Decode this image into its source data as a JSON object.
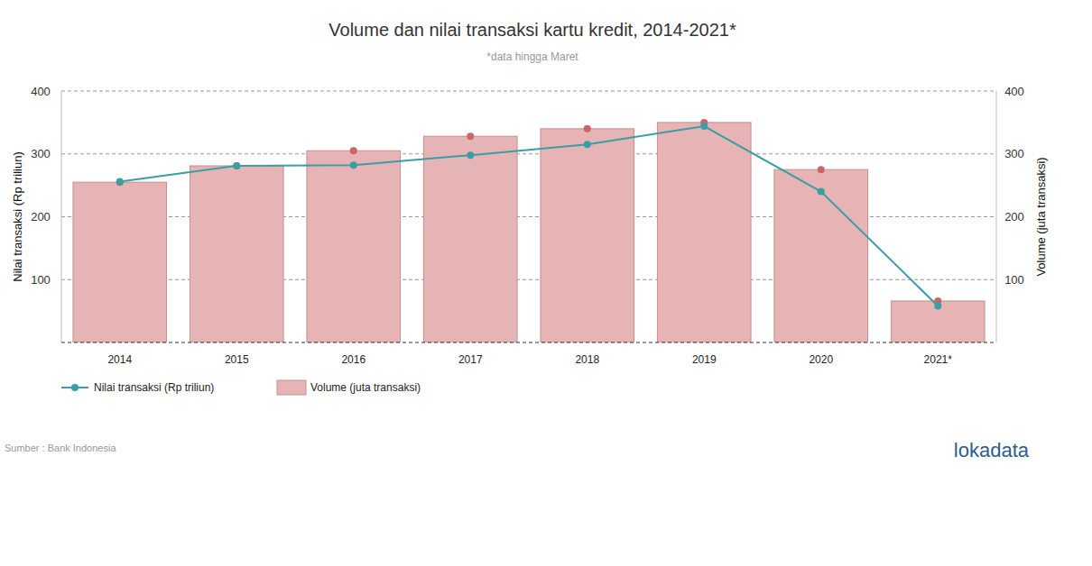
{
  "chart_data": {
    "type": "bar",
    "title": "Volume dan nilai transaksi kartu kredit, 2014-2021*",
    "subtitle": "*data hingga Maret",
    "y_label": "Nilai transaksi (Rp triliun)",
    "y2_label": "Volume (juta transaksi)",
    "source": "Sumber : Bank Indonesia",
    "brand": "lokadata",
    "categories": [
      "2014",
      "2015",
      "2016",
      "2017",
      "2018",
      "2019",
      "2020",
      "2021*"
    ],
    "series": [
      {
        "name": "Nilai transaksi (Rp triliun)",
        "type": "line",
        "color": "#3a9ea5",
        "marker": "circle",
        "values": [
          256,
          281,
          282,
          298,
          315,
          344,
          240,
          58
        ]
      },
      {
        "name": "Volume (juta transaksi)",
        "type": "bar",
        "color": "#e6b4b4",
        "marker": "circle",
        "axis": "y2",
        "values": [
          255,
          281,
          305,
          328,
          340,
          350,
          275,
          66
        ]
      }
    ],
    "ylim": [
      0,
      400
    ],
    "yticks": [
      100,
      200,
      300,
      400
    ],
    "y2lim": [
      0,
      400
    ],
    "y2ticks": [
      100,
      200,
      300,
      400
    ],
    "grid": true,
    "legend": "bottom-left"
  }
}
